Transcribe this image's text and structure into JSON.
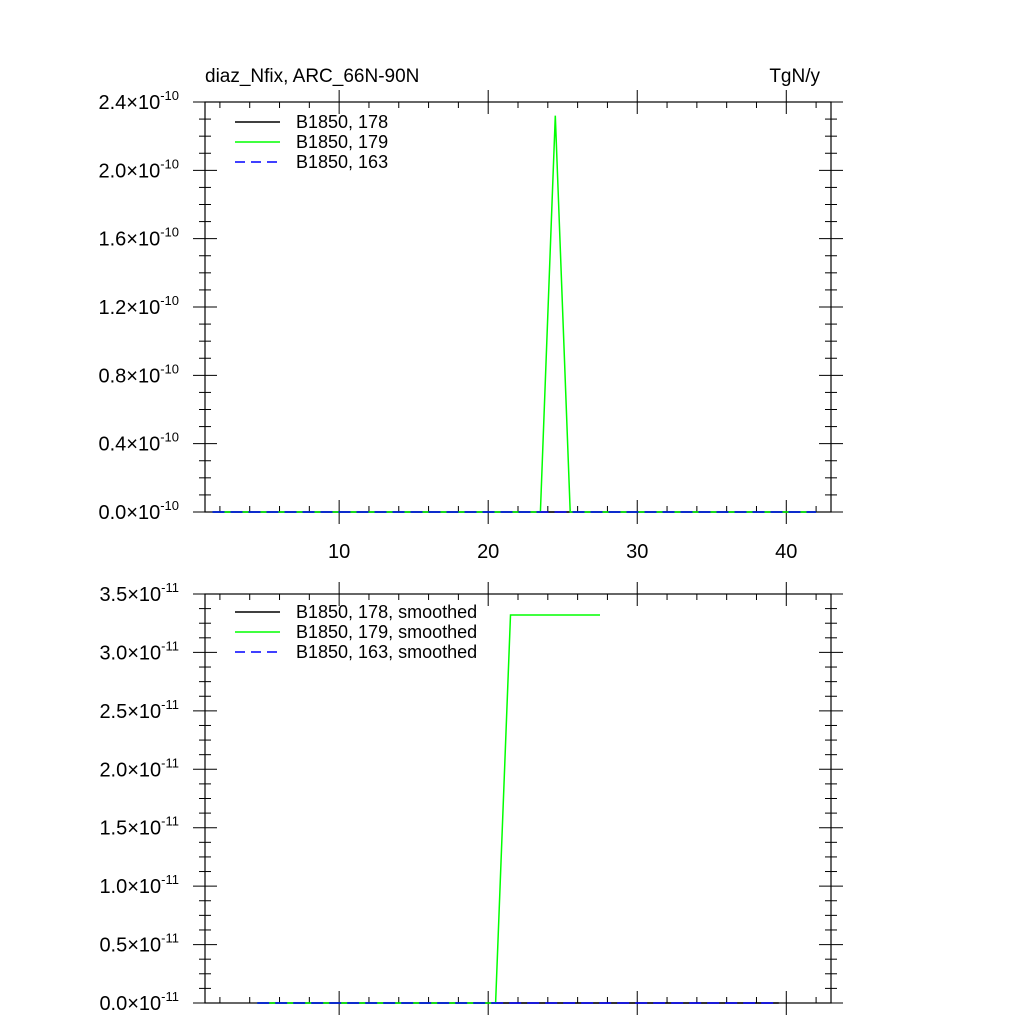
{
  "header": {
    "left_title": "diaz_Nfix, ARC_66N-90N",
    "right_title": "TgN/y"
  },
  "chart_data": [
    {
      "type": "line",
      "xlim": [
        1,
        43
      ],
      "ylim": [
        0,
        2.4e-10
      ],
      "x_ticks": [
        10,
        20,
        30,
        40
      ],
      "x_tick_labels": [
        "10",
        "20",
        "30",
        "40"
      ],
      "y_ticks": [
        0,
        4e-11,
        8e-11,
        1.2e-10,
        1.6e-10,
        2e-10,
        2.4e-10
      ],
      "y_tick_labels": [
        {
          "mantissa": "0.0",
          "times": "×",
          "base": "10",
          "exponent": "-10"
        },
        {
          "mantissa": "0.4",
          "times": "×",
          "base": "10",
          "exponent": "-10"
        },
        {
          "mantissa": "0.8",
          "times": "×",
          "base": "10",
          "exponent": "-10"
        },
        {
          "mantissa": "1.2",
          "times": "×",
          "base": "10",
          "exponent": "-10"
        },
        {
          "mantissa": "1.6",
          "times": "×",
          "base": "10",
          "exponent": "-10"
        },
        {
          "mantissa": "2.0",
          "times": "×",
          "base": "10",
          "exponent": "-10"
        },
        {
          "mantissa": "2.4",
          "times": "×",
          "base": "10",
          "exponent": "-10"
        }
      ],
      "grid": false,
      "legend_position": "top-left",
      "series": [
        {
          "name": "B1850, 178",
          "color": "#000000",
          "dash": "solid",
          "x": [
            1.5,
            42
          ],
          "y": [
            0,
            0
          ]
        },
        {
          "name": "B1850, 179",
          "color": "#00ff00",
          "dash": "solid",
          "x": [
            1.5,
            23.5,
            24.5,
            25.5,
            42
          ],
          "y": [
            0,
            0,
            2.32e-10,
            0,
            0
          ]
        },
        {
          "name": "B1850, 163",
          "color": "#0000ff",
          "dash": "dashed",
          "x": [
            1.5,
            42
          ],
          "y": [
            0,
            0
          ]
        }
      ]
    },
    {
      "type": "line",
      "xlim": [
        1,
        43
      ],
      "ylim": [
        0,
        3.5e-11
      ],
      "x_ticks": [
        10,
        20,
        30,
        40
      ],
      "x_tick_labels": [],
      "y_ticks": [
        0,
        5e-12,
        1e-11,
        1.5e-11,
        2e-11,
        2.5e-11,
        3e-11,
        3.5e-11
      ],
      "y_tick_labels": [
        {
          "mantissa": "0.0",
          "times": "×",
          "base": "10",
          "exponent": "-11"
        },
        {
          "mantissa": "0.5",
          "times": "×",
          "base": "10",
          "exponent": "-11"
        },
        {
          "mantissa": "1.0",
          "times": "×",
          "base": "10",
          "exponent": "-11"
        },
        {
          "mantissa": "1.5",
          "times": "×",
          "base": "10",
          "exponent": "-11"
        },
        {
          "mantissa": "2.0",
          "times": "×",
          "base": "10",
          "exponent": "-11"
        },
        {
          "mantissa": "2.5",
          "times": "×",
          "base": "10",
          "exponent": "-11"
        },
        {
          "mantissa": "3.0",
          "times": "×",
          "base": "10",
          "exponent": "-11"
        },
        {
          "mantissa": "3.5",
          "times": "×",
          "base": "10",
          "exponent": "-11"
        }
      ],
      "grid": false,
      "legend_position": "top-left",
      "series": [
        {
          "name": "B1850, 178, smoothed",
          "color": "#000000",
          "dash": "solid",
          "x": [
            4.5,
            39.5
          ],
          "y": [
            0,
            0
          ]
        },
        {
          "name": "B1850, 179, smoothed",
          "color": "#00ff00",
          "dash": "solid",
          "x": [
            4.5,
            20.5,
            21.5,
            27.5
          ],
          "y": [
            0,
            0,
            3.32e-11,
            3.32e-11
          ]
        },
        {
          "name": "B1850, 163, smoothed",
          "color": "#0000ff",
          "dash": "dashed",
          "x": [
            4.5,
            39.5
          ],
          "y": [
            0,
            0
          ]
        }
      ]
    }
  ]
}
